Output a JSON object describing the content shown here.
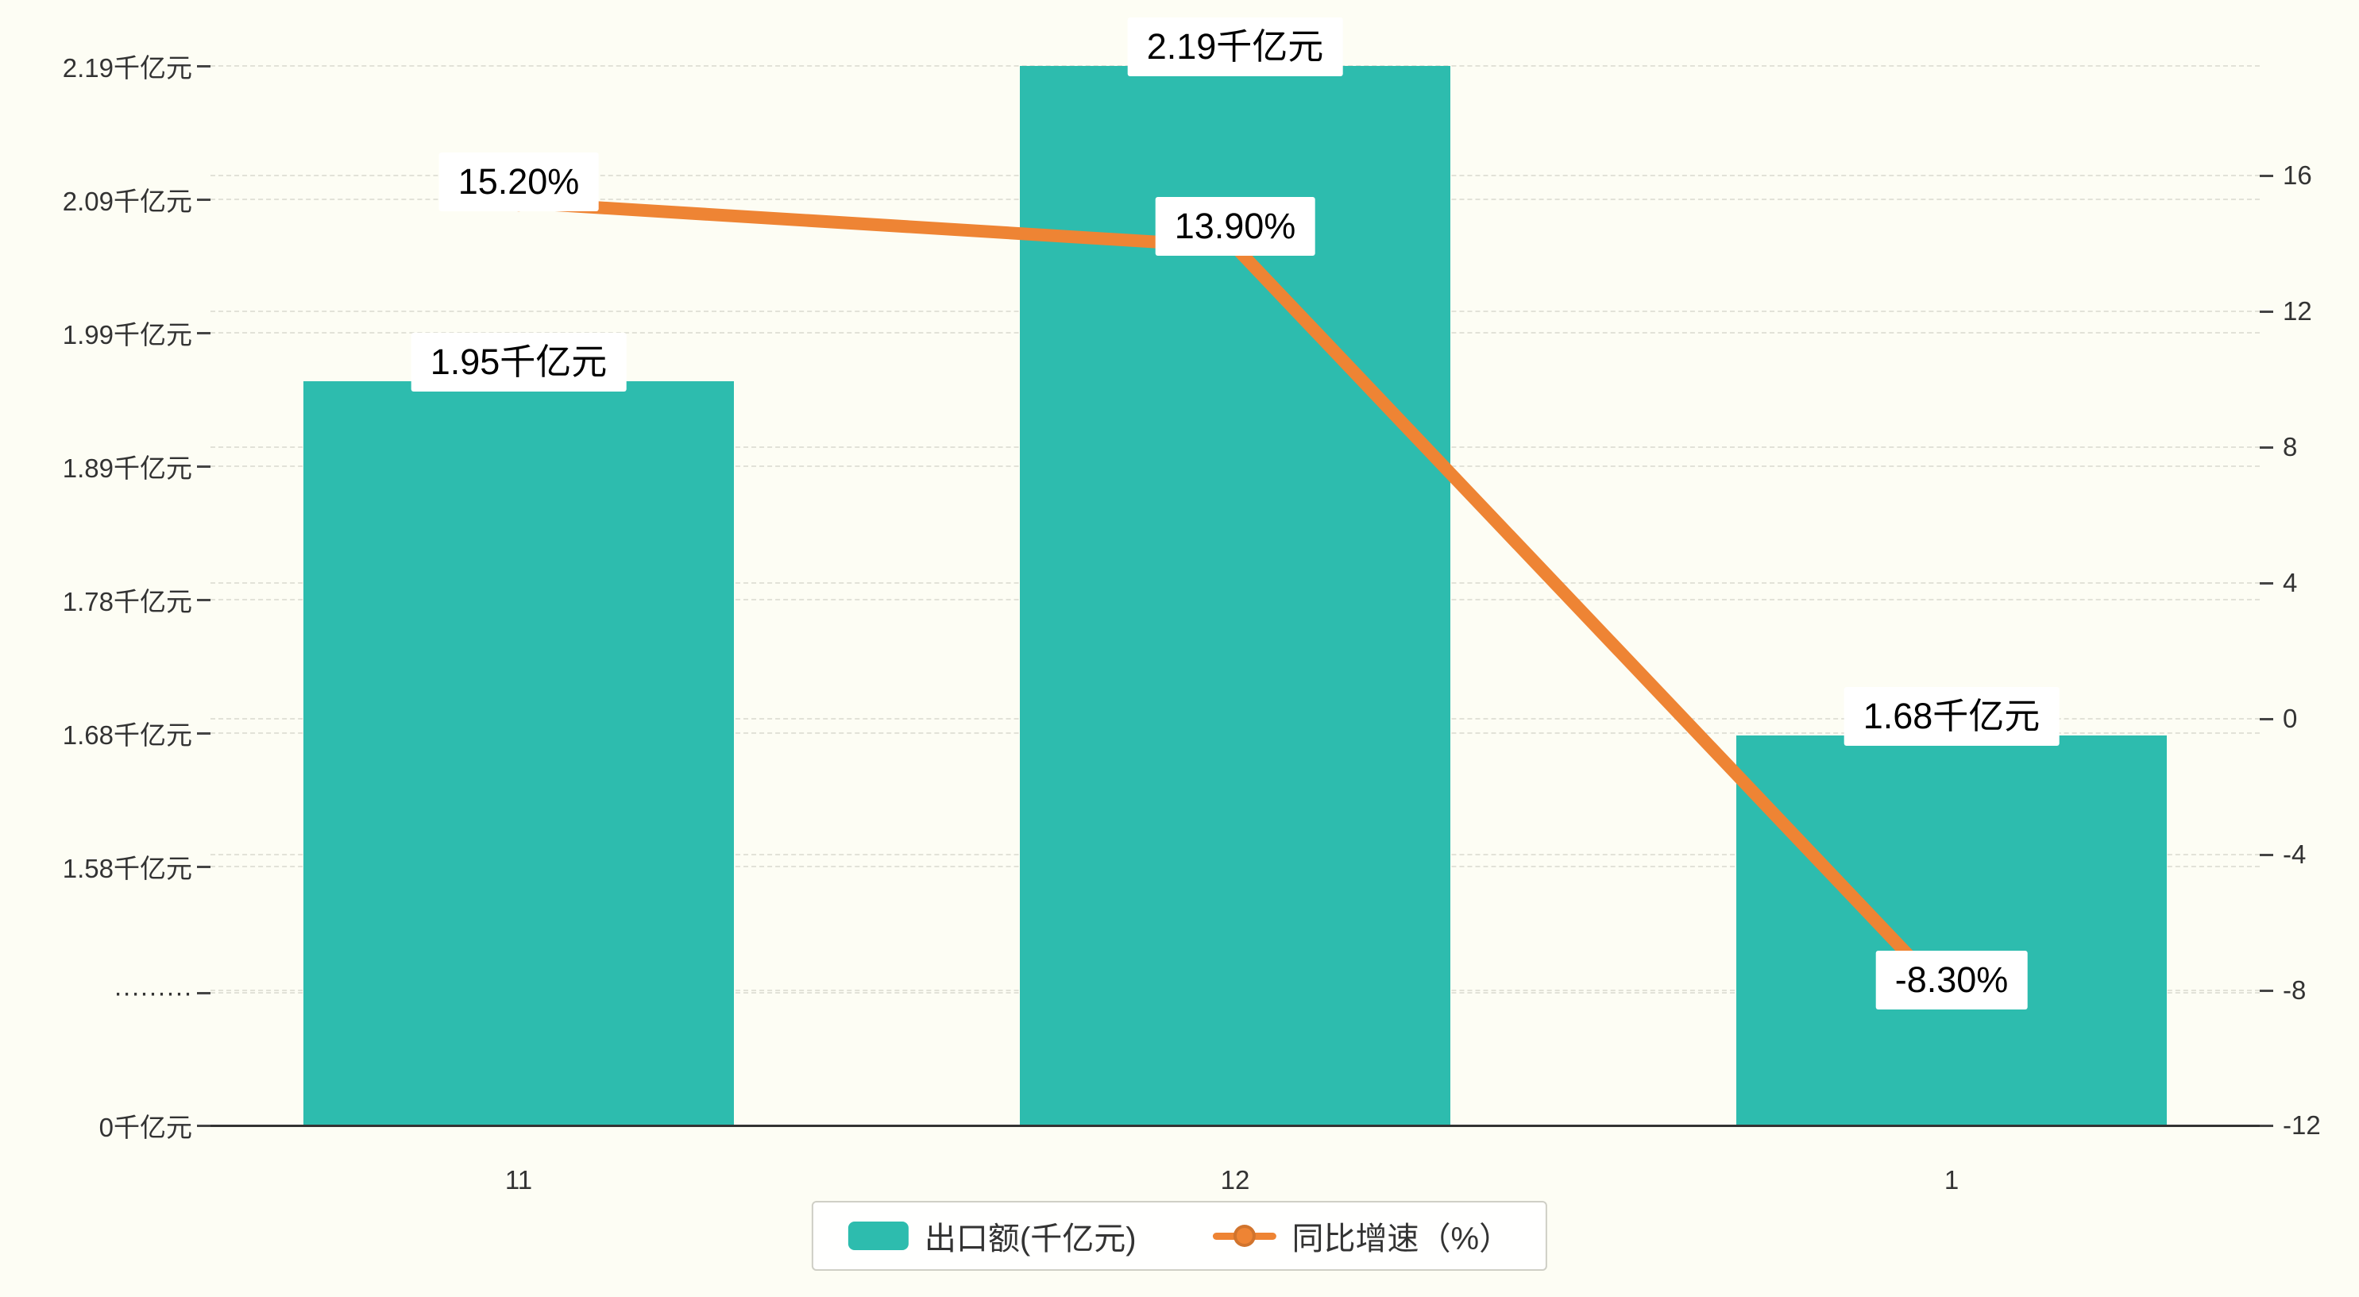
{
  "chart_data": {
    "type": "bar+line",
    "categories": [
      "11",
      "12",
      "1"
    ],
    "series": [
      {
        "name": "出口额(千亿元)",
        "type": "bar",
        "axis": "left",
        "values": [
          1.95,
          2.19,
          1.68
        ],
        "data_labels": [
          "1.95千亿元",
          "2.19千亿元",
          "1.68千亿元"
        ],
        "color": "#2DBCAE"
      },
      {
        "name": "同比增速（%）",
        "type": "line",
        "axis": "right",
        "values": [
          15.2,
          13.9,
          -8.3
        ],
        "data_labels": [
          "15.20%",
          "13.90%",
          "-8.30%"
        ],
        "color": "#EE8434"
      }
    ],
    "left_axis": {
      "tick_labels": [
        "2.19千亿元",
        "2.09千亿元",
        "1.99千亿元",
        "1.89千亿元",
        "1.78千亿元",
        "1.68千亿元",
        "1.58千亿元",
        "·········",
        "0千亿元"
      ],
      "tick_values": [
        2.19,
        2.09,
        1.99,
        1.89,
        1.78,
        1.68,
        1.58,
        null,
        0
      ],
      "axis_break": true
    },
    "right_axis": {
      "tick_labels": [
        "16",
        "12",
        "8",
        "4",
        "0",
        "-4",
        "-8",
        "-12"
      ],
      "tick_values": [
        16,
        12,
        8,
        4,
        0,
        -4,
        -8,
        -12
      ],
      "min": -12,
      "max": 16
    },
    "grid": "dashed horizontal",
    "legend_position": "bottom-center",
    "background_color": "#FDFDF4",
    "label_box_color": "#FFFFFF",
    "axis_text_color": "#333333"
  }
}
